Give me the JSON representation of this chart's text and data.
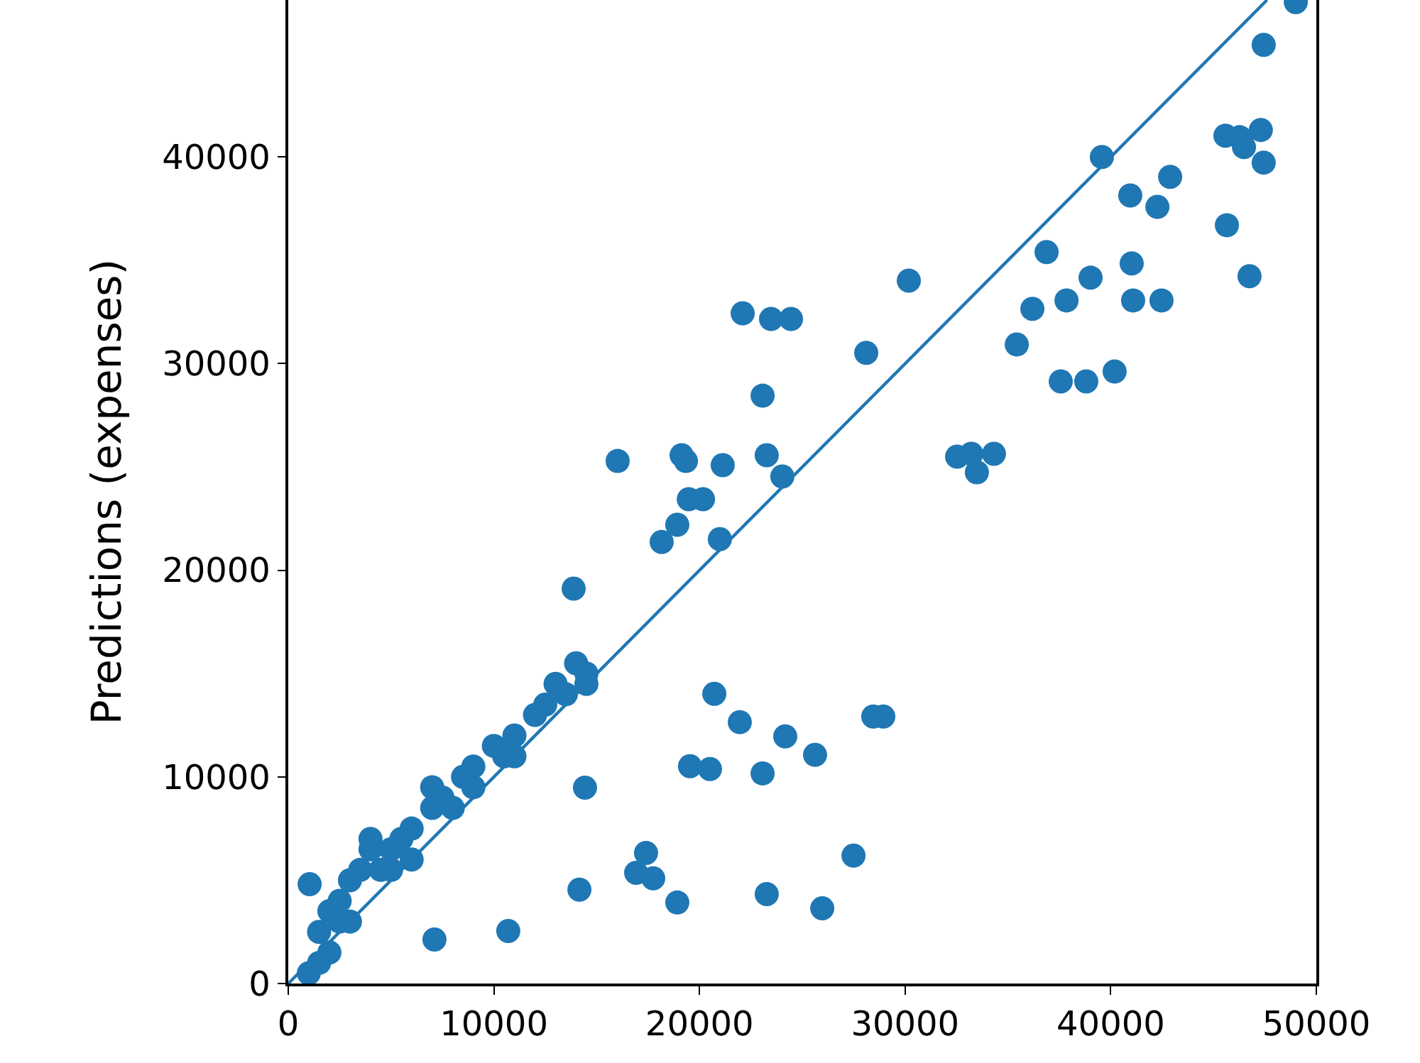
{
  "chart_data": {
    "type": "scatter",
    "ylabel": "Predictions (expenses)",
    "xlim": [
      0,
      50000
    ],
    "ylim": [
      0,
      47600
    ],
    "xticks": [
      0,
      10000,
      20000,
      30000,
      40000,
      50000
    ],
    "yticks": [
      0,
      10000,
      20000,
      30000,
      40000
    ],
    "marker": "circle",
    "series": [
      {
        "color": "#1f77b4",
        "x": [
          49000,
          47440,
          46270,
          45580,
          47300,
          46480,
          47440,
          45650,
          46750,
          39570,
          40950,
          42270,
          42890,
          41020,
          36880,
          39020,
          37850,
          36190,
          41090,
          42470,
          35430,
          37570,
          38810,
          40190,
          30180,
          28110,
          32530,
          33490,
          34320,
          33220,
          22100,
          23480,
          24450,
          23070,
          23270,
          24030,
          21130,
          16020,
          19130,
          19340,
          19480,
          20170,
          18920,
          18160,
          20990,
          13880,
          20720,
          21960,
          24170,
          25620,
          19540,
          20510,
          23070,
          28450,
          28940,
          14430,
          27490,
          17400,
          16920,
          17750,
          18920,
          23270,
          25970,
          14160,
          7110,
          10700,
          1040,
          1500,
          2000,
          2500,
          3000,
          3500,
          4000,
          4000,
          5000,
          5500,
          6000,
          7000,
          7000,
          7500,
          8500,
          9000,
          10000,
          10500,
          11000,
          12000,
          12500,
          13000,
          13500,
          14000,
          14500,
          14500,
          1000,
          2000,
          3000,
          5000,
          6000,
          8000,
          9000,
          11000,
          1500,
          2500,
          4500
        ],
        "values": [
          47500,
          45430,
          40960,
          41030,
          41310,
          40480,
          39730,
          36700,
          34230,
          40000,
          38140,
          37590,
          39040,
          34850,
          35400,
          34160,
          33060,
          32650,
          33060,
          33060,
          30930,
          29140,
          29140,
          29620,
          34020,
          30520,
          25500,
          24740,
          25640,
          25640,
          32440,
          32160,
          32160,
          28450,
          25570,
          24540,
          25090,
          25290,
          25570,
          25290,
          23440,
          23440,
          22200,
          21370,
          21510,
          19110,
          14020,
          12650,
          11960,
          11070,
          10520,
          10380,
          10170,
          12920,
          12920,
          9480,
          6190,
          6320,
          5360,
          5090,
          3920,
          4330,
          3640,
          4540,
          2130,
          2540,
          4810,
          2500,
          3500,
          4000,
          5000,
          5500,
          6500,
          7000,
          6500,
          7000,
          7500,
          8500,
          9500,
          9000,
          10000,
          10500,
          11500,
          11000,
          12000,
          13000,
          13500,
          14500,
          14000,
          15500,
          15000,
          14500,
          500,
          1500,
          3000,
          5500,
          6000,
          8500,
          9500,
          11000,
          1000,
          3000,
          5500
        ]
      },
      {
        "color": "#1f77b4",
        "type": "line",
        "marker": "none",
        "x": [
          0,
          47600
        ],
        "values": [
          0,
          47600
        ]
      }
    ]
  }
}
